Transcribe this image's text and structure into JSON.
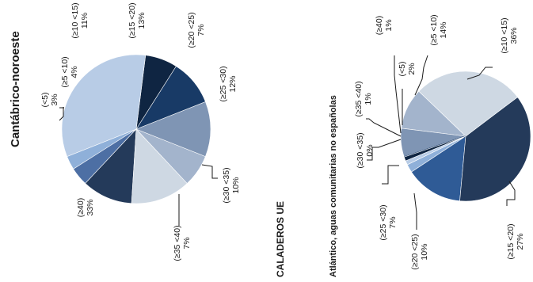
{
  "chart_data": [
    {
      "type": "pie",
      "title": "Cantábrico-noroeste",
      "slices": [
        {
          "label": "(<5)",
          "value": 3,
          "pct_label": "3%",
          "color": "#8fb0d9"
        },
        {
          "label": "(≥5 <10)",
          "value": 4,
          "pct_label": "4%",
          "color": "#4d6fa4"
        },
        {
          "label": "(≥10 <15)",
          "value": 11,
          "pct_label": "11%",
          "color": "#243a5a"
        },
        {
          "label": "(≥15 <20)",
          "value": 13,
          "pct_label": "13%",
          "color": "#ced8e3"
        },
        {
          "label": "(≥20 <25)",
          "value": 7,
          "pct_label": "7%",
          "color": "#a3b4cc"
        },
        {
          "label": "(≥25 <30)",
          "value": 12,
          "pct_label": "12%",
          "color": "#7f95b4"
        },
        {
          "label": "(≥30 <35)",
          "value": 10,
          "pct_label": "10%",
          "color": "#183a66"
        },
        {
          "label": "(≥35 <40)",
          "value": 7,
          "pct_label": "7%",
          "color": "#0f2542"
        },
        {
          "label": "(≥40)",
          "value": 33,
          "pct_label": "33%",
          "color": "#b8cce6"
        }
      ]
    },
    {
      "type": "pie",
      "title": "CALADEROS UE",
      "subtitle": "Atlántico, aguas comunitarias no españolas",
      "slices": [
        {
          "label": "(<5)",
          "value": 2,
          "pct_label": "2%",
          "color": "#8fb0d9"
        },
        {
          "label": "(≥5 <10)",
          "value": 14,
          "pct_label": "14%",
          "color": "#2f5b96"
        },
        {
          "label": "(≥10 <15)",
          "value": 36,
          "pct_label": "36%",
          "color": "#243a5a"
        },
        {
          "label": "(≥15 <20)",
          "value": 27,
          "pct_label": "27%",
          "color": "#ced8e3"
        },
        {
          "label": "(≥20 <25)",
          "value": 10,
          "pct_label": "10%",
          "color": "#a3b4cc"
        },
        {
          "label": "(≥25 <30)",
          "value": 7,
          "pct_label": "7%",
          "color": "#7f95b4"
        },
        {
          "label": "(≥30 <35)",
          "value": 0,
          "pct_label": "0%",
          "color": "#183a66"
        },
        {
          "label": "(≥35 <40)",
          "value": 1,
          "pct_label": "1%",
          "color": "#0f2542"
        },
        {
          "label": "(≥40)",
          "value": 1,
          "pct_label": "1%",
          "color": "#b8cce6"
        }
      ]
    }
  ]
}
